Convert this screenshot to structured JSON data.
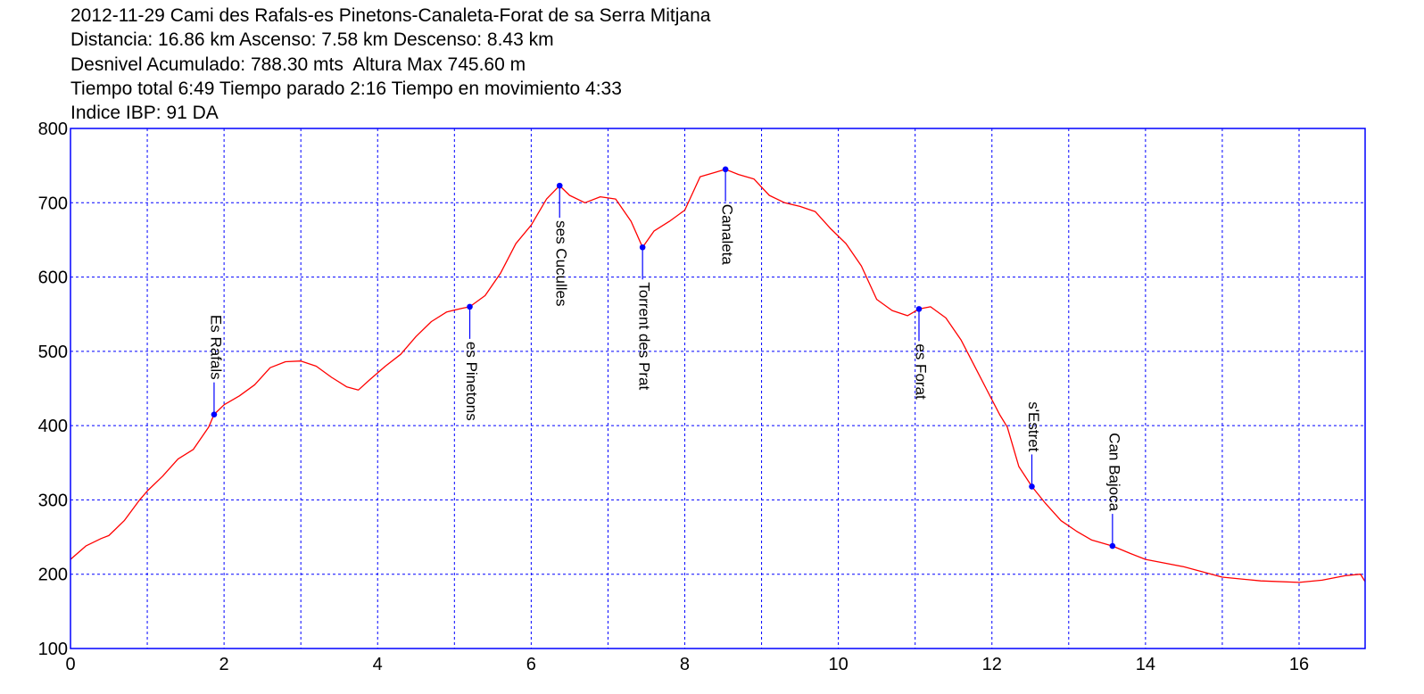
{
  "header": {
    "lines": [
      "2012-11-29 Cami des Rafals-es Pinetons-Canaleta-Forat de sa Serra Mitjana",
      "Distancia: 16.86 km Ascenso: 7.58 km Descenso: 8.43 km",
      "Desnivel Acumulado: 788.30 mts  Altura Max 745.60 m",
      "Tiempo total 6:49 Tiempo parado 2:16 Tiempo en movimiento 4:33",
      "Indice IBP: 91 DA"
    ]
  },
  "colors": {
    "profile": "#ff0000",
    "frame": "#0000ff",
    "grid": "#0000ff",
    "marker": "#0000ff",
    "text": "#000000"
  },
  "chart_data": {
    "type": "line",
    "title": "2012-11-29 Cami des Rafals-es Pinetons-Canaleta-Forat de sa Serra Mitjana",
    "xlabel": "",
    "ylabel": "",
    "xlim": [
      0,
      16.86
    ],
    "ylim": [
      100,
      800
    ],
    "x_ticks": [
      0,
      2,
      4,
      6,
      8,
      10,
      12,
      14,
      16
    ],
    "y_ticks": [
      100,
      200,
      300,
      400,
      500,
      600,
      700,
      800
    ],
    "x_grid": [
      1,
      2,
      3,
      4,
      5,
      6,
      7,
      8,
      9,
      10,
      11,
      12,
      13,
      14,
      15,
      16
    ],
    "y_grid": [
      200,
      300,
      400,
      500,
      600,
      700
    ],
    "grid": true,
    "series": [
      {
        "x": [
          0,
          0.2,
          0.4,
          0.5,
          0.7,
          0.9,
          1.0,
          1.2,
          1.4,
          1.6,
          1.8,
          1.87,
          2.0,
          2.2,
          2.4,
          2.6,
          2.8,
          3.0,
          3.2,
          3.4,
          3.6,
          3.75,
          3.9,
          4.1,
          4.3,
          4.5,
          4.7,
          4.9,
          5.1,
          5.2,
          5.4,
          5.6,
          5.8,
          6.0,
          6.2,
          6.37,
          6.5,
          6.7,
          6.9,
          7.1,
          7.3,
          7.45,
          7.6,
          7.8,
          8.0,
          8.2,
          8.4,
          8.53,
          8.7,
          8.9,
          9.1,
          9.3,
          9.5,
          9.7,
          9.9,
          10.1,
          10.3,
          10.5,
          10.7,
          10.9,
          11.05,
          11.2,
          11.4,
          11.6,
          11.8,
          12.0,
          12.1,
          12.2,
          12.35,
          12.52,
          12.7,
          12.9,
          13.1,
          13.3,
          13.57,
          13.8,
          14.0,
          14.5,
          15.0,
          15.5,
          16.0,
          16.3,
          16.6,
          16.8,
          16.86
        ],
        "y": [
          220,
          238,
          248,
          252,
          272,
          300,
          312,
          332,
          355,
          368,
          398,
          415,
          428,
          440,
          455,
          478,
          486,
          487,
          480,
          465,
          452,
          448,
          462,
          480,
          496,
          520,
          540,
          553,
          558,
          560,
          575,
          605,
          645,
          670,
          705,
          723,
          710,
          700,
          708,
          705,
          675,
          640,
          662,
          675,
          690,
          735,
          741,
          745,
          738,
          732,
          710,
          700,
          695,
          688,
          665,
          645,
          615,
          570,
          555,
          548,
          557,
          560,
          545,
          515,
          475,
          435,
          415,
          398,
          345,
          318,
          295,
          272,
          258,
          246,
          238,
          228,
          220,
          210,
          196,
          191,
          189,
          192,
          198,
          200,
          190
        ]
      }
    ],
    "waypoints": [
      {
        "name": "Es Rafals",
        "x": 1.87,
        "y": 415,
        "label_side": "above"
      },
      {
        "name": "es Pinetons",
        "x": 5.2,
        "y": 560,
        "label_side": "below"
      },
      {
        "name": "ses Cuculles",
        "x": 6.37,
        "y": 723,
        "label_side": "below"
      },
      {
        "name": "Torrent des Prat",
        "x": 7.45,
        "y": 640,
        "label_side": "below"
      },
      {
        "name": "Canaleta",
        "x": 8.53,
        "y": 745,
        "label_side": "below"
      },
      {
        "name": "es Forat",
        "x": 11.05,
        "y": 557,
        "label_side": "below"
      },
      {
        "name": "s'Estret",
        "x": 12.52,
        "y": 318,
        "label_side": "above"
      },
      {
        "name": "Can Bajoca",
        "x": 13.57,
        "y": 238,
        "label_side": "above"
      }
    ]
  }
}
